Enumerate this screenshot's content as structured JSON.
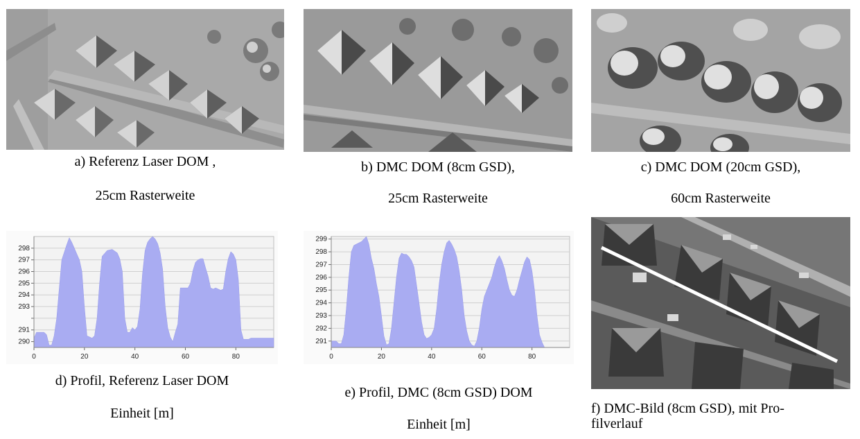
{
  "figure": {
    "panel_a": {
      "caption_line1": "a) Referenz Laser DOM ,",
      "caption_line2": "25cm Rasterweite"
    },
    "panel_b": {
      "caption_line1": "b) DMC DOM (8cm GSD),",
      "caption_line2": "25cm Rasterweite"
    },
    "panel_c": {
      "caption_line1": "c) DMC DOM (20cm GSD),",
      "caption_line2": "60cm Rasterweite"
    },
    "panel_d": {
      "caption_line1": "d) Profil, Referenz Laser DOM",
      "caption_line2": "Einheit [m]"
    },
    "panel_e": {
      "caption_line1": "e) Profil, DMC (8cm GSD) DOM",
      "caption_line2": "Einheit [m]"
    },
    "panel_f": {
      "caption_line1": "f) DMC-Bild (8cm GSD), mit Pro-",
      "caption_line2": "filverlauf"
    }
  },
  "chart_data": [
    {
      "type": "area",
      "title": "",
      "xlabel": "",
      "ylabel": "",
      "xlim": [
        0,
        95
      ],
      "ylim": [
        289.5,
        299
      ],
      "x_ticks": [
        0,
        20,
        40,
        60,
        80
      ],
      "y_ticks": [
        290,
        291,
        292,
        293,
        294,
        295,
        296,
        297,
        298
      ],
      "y_tick_labels": [
        "290",
        "291",
        "",
        "293",
        "294",
        "295",
        "296",
        "297",
        "298"
      ],
      "grid": true,
      "color": "#a9acf2",
      "series": [
        {
          "x": [
            0,
            1,
            4,
            5,
            6,
            7,
            8,
            9,
            10,
            11,
            13,
            14,
            15,
            16,
            17,
            18,
            19,
            20,
            21,
            22,
            23,
            24,
            25,
            26,
            27,
            29,
            31,
            33,
            34,
            35,
            36,
            37,
            38,
            39,
            40,
            41,
            42,
            43,
            44,
            45,
            46,
            47,
            48,
            49,
            50,
            51,
            52,
            53,
            54,
            55,
            56,
            57,
            58,
            59,
            60,
            61,
            62,
            63,
            64,
            65,
            66,
            67,
            68,
            69,
            70,
            71,
            72,
            73,
            74,
            75,
            76,
            77,
            78,
            79,
            80,
            81,
            82,
            83,
            84,
            85,
            86,
            88,
            90,
            92,
            95
          ],
          "y": [
            290.3,
            290.8,
            290.8,
            290.6,
            289.7,
            289.7,
            290.5,
            292,
            294.5,
            297,
            298.3,
            298.9,
            298.5,
            298,
            297.5,
            297,
            296,
            293,
            290.5,
            290.4,
            290.3,
            290.5,
            292,
            295,
            297.3,
            297.8,
            297.9,
            297.6,
            297.1,
            296,
            292,
            290.8,
            290.8,
            291.2,
            291,
            291.3,
            292.8,
            295.8,
            297.8,
            298.5,
            298.8,
            299,
            298.8,
            298.4,
            297.6,
            296.2,
            293,
            291.2,
            290.4,
            290,
            290.8,
            291.5,
            294.6,
            294.6,
            294.6,
            294.6,
            295,
            296.1,
            296.8,
            297,
            297.1,
            297.1,
            296.3,
            295.6,
            294.6,
            294.5,
            294.6,
            294.5,
            294.4,
            294.5,
            296,
            297.1,
            297.7,
            297.5,
            297,
            295.3,
            291,
            290.2,
            290.2,
            290.2,
            290.3,
            290.3,
            290.3,
            290.3,
            290.3
          ]
        }
      ]
    },
    {
      "type": "area",
      "title": "",
      "xlabel": "",
      "ylabel": "",
      "xlim": [
        0,
        95
      ],
      "ylim": [
        290.5,
        299.2
      ],
      "x_ticks": [
        0,
        20,
        40,
        60,
        80
      ],
      "y_ticks": [
        291,
        292,
        293,
        294,
        295,
        296,
        297,
        298,
        299
      ],
      "y_tick_labels": [
        "291",
        "292",
        "293",
        "294",
        "295",
        "296",
        "297",
        "298",
        "299"
      ],
      "grid": true,
      "color": "#a9acf2",
      "series": [
        {
          "x": [
            0,
            2,
            3,
            4,
            5,
            6,
            7,
            8,
            9,
            10,
            12,
            14,
            15,
            16,
            17,
            18,
            19,
            20,
            21,
            22,
            23,
            24,
            25,
            26,
            27,
            28,
            29,
            30,
            31,
            32,
            33,
            34,
            35,
            36,
            37,
            38,
            39,
            40,
            41,
            42,
            43,
            44,
            45,
            46,
            47,
            48,
            49,
            50,
            51,
            52,
            53,
            54,
            55,
            56,
            57,
            58,
            59,
            60,
            61,
            62,
            63,
            64,
            65,
            66,
            67,
            68,
            69,
            70,
            71,
            72,
            73,
            74,
            75,
            76,
            77,
            78,
            79,
            80,
            81,
            82,
            83,
            84,
            85
          ],
          "y": [
            291,
            291,
            290.8,
            290.8,
            291.5,
            293.5,
            296,
            298,
            298.5,
            298.6,
            298.8,
            299.2,
            298.6,
            297.5,
            296.7,
            295.5,
            294.5,
            293,
            291.4,
            290.7,
            290.8,
            292,
            294,
            296,
            297.5,
            297.9,
            297.8,
            297.8,
            297.6,
            297.3,
            296.8,
            295.4,
            294,
            292.5,
            291.5,
            291.2,
            291.3,
            291.5,
            292,
            293.5,
            295.5,
            297,
            298,
            298.7,
            298.9,
            298.6,
            298.2,
            297.6,
            296.5,
            295,
            293,
            291.8,
            291,
            290.7,
            290.6,
            291,
            292,
            293.5,
            294.5,
            295,
            295.5,
            296,
            296.8,
            297.4,
            297.7,
            297.3,
            296.7,
            295.8,
            295,
            294.6,
            294.5,
            295,
            295.8,
            296.5,
            297.2,
            297.6,
            297.4,
            296.5,
            295,
            293,
            291.5,
            290.9,
            290.5
          ]
        }
      ]
    }
  ]
}
